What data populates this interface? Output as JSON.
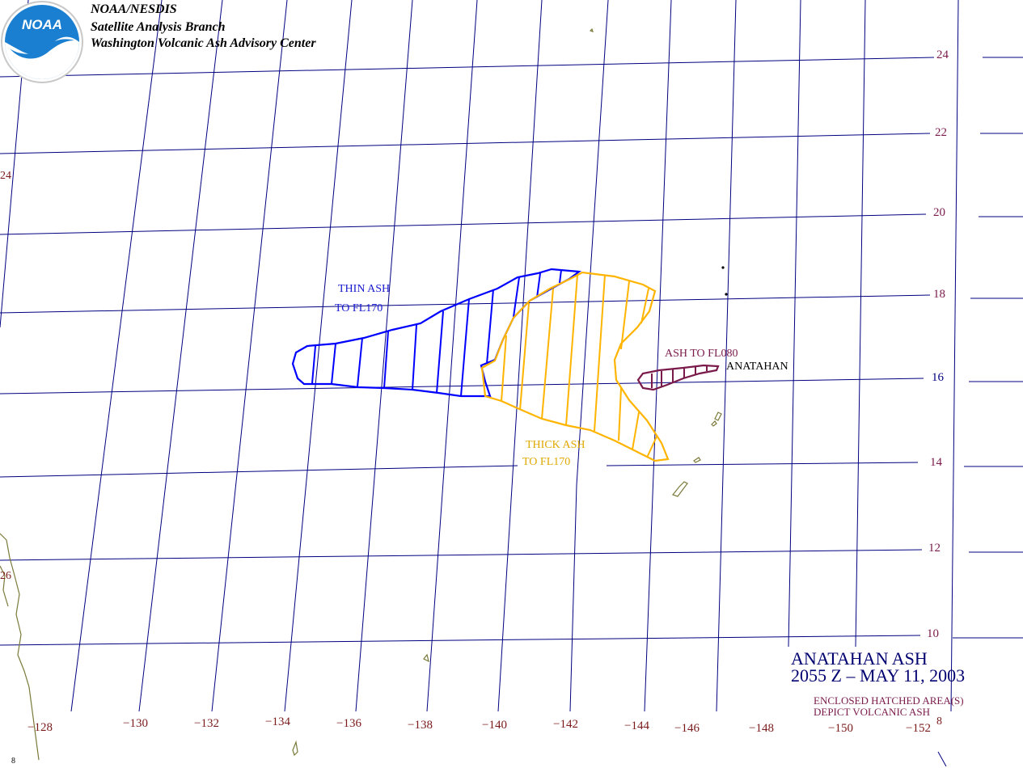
{
  "header": {
    "line1": "NOAA/NESDIS",
    "line2": "Satellite Analysis Branch",
    "line3": "Washington Volcanic Ash Advisory Center"
  },
  "logo": {
    "text": "NOAA",
    "icon": "noaa-logo-icon"
  },
  "title": {
    "line1": "ANATAHAN ASH",
    "line2": "2055 Z – MAY 11, 2003"
  },
  "note": {
    "line1": "ENCLOSED HATCHED AREA(S)",
    "line2": "DEPICT VOLCANIC ASH"
  },
  "ash_labels": {
    "thin_line1": "THIN ASH",
    "thin_line2": "TO FL170",
    "thick_line1": "THICK ASH",
    "thick_line2": "TO FL170",
    "low": "ASH TO FL080",
    "volcano": "ANATAHAN"
  },
  "lat_labels": [
    "24",
    "22",
    "20",
    "18",
    "16",
    "14",
    "12",
    "10"
  ],
  "lon_labels": [
    "−128",
    "−130",
    "−132",
    "−134",
    "−136",
    "−138",
    "−140",
    "−142",
    "−144",
    "−146",
    "−148",
    "−150",
    "−152"
  ],
  "edge_labels": {
    "left_top": "24",
    "left_mid": "26",
    "bottom_right": "8",
    "bottom_left": "8"
  },
  "colors": {
    "grid": "#000080",
    "thin_ash": "#0000ff",
    "thick_ash": "#ffb400",
    "low_ash": "#7a1a4a",
    "land": "#7a7a3a"
  }
}
